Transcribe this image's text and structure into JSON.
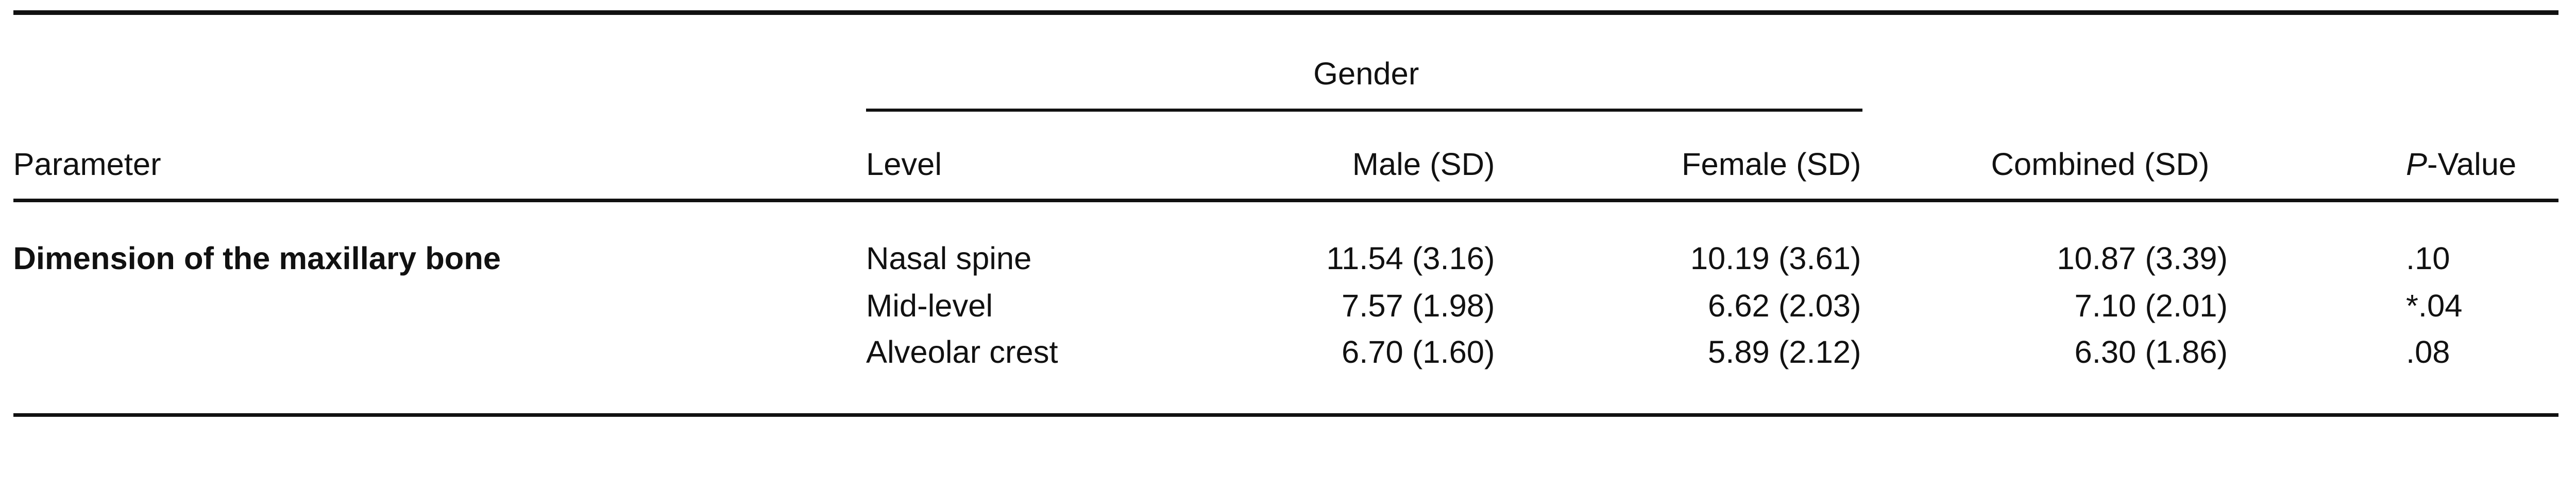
{
  "table": {
    "group_header": "Gender",
    "columns": {
      "parameter": "Parameter",
      "level": "Level",
      "male": "Male (SD)",
      "female": "Female (SD)",
      "combined": "Combined (SD)",
      "p_value_italic": "P",
      "p_value_rest": "-Value"
    },
    "parameter": "Dimension of the maxillary bone",
    "rows": [
      {
        "level": "Nasal spine",
        "male": "11.54 (3.16)",
        "female": "10.19 (3.61)",
        "combined": "10.87 (3.39)",
        "p": ".10"
      },
      {
        "level": "Mid-level",
        "male": "7.57 (1.98)",
        "female": "6.62 (2.03)",
        "combined": "7.10 (2.01)",
        "p": "*.04"
      },
      {
        "level": "Alveolar crest",
        "male": "6.70 (1.60)",
        "female": "5.89 (2.12)",
        "combined": "6.30 (1.86)",
        "p": ".08"
      }
    ]
  }
}
